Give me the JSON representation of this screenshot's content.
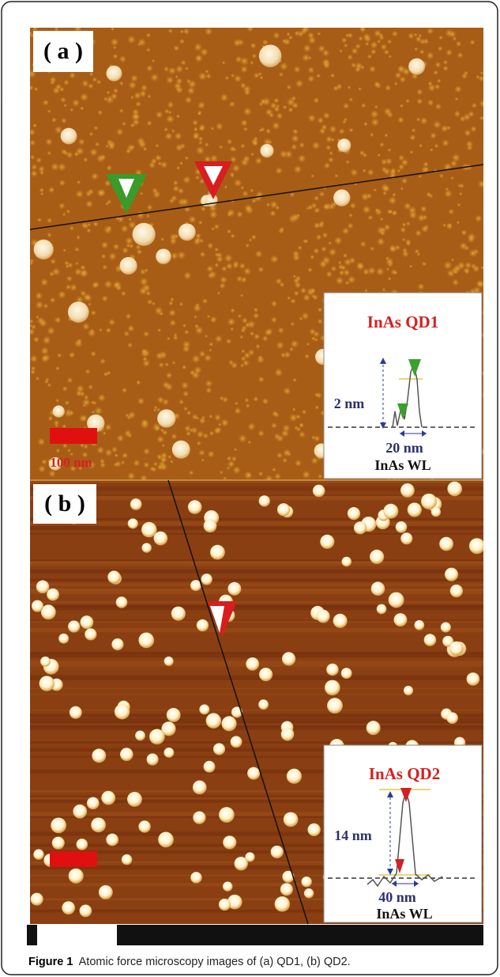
{
  "panels": [
    {
      "label": "( a )",
      "inset": {
        "title": "InAs QD1",
        "height": "2 nm",
        "width": "20 nm",
        "layer": "InAs WL"
      },
      "scale_bar": "100 nm"
    },
    {
      "label": "( b )",
      "inset": {
        "title": "InAs QD2",
        "height": "14 nm",
        "width": "40 nm",
        "layer": "InAs WL"
      }
    }
  ],
  "caption": {
    "label": "Figure 1",
    "text": "Atomic force microscopy images of (a) QD1, (b) QD2."
  }
}
